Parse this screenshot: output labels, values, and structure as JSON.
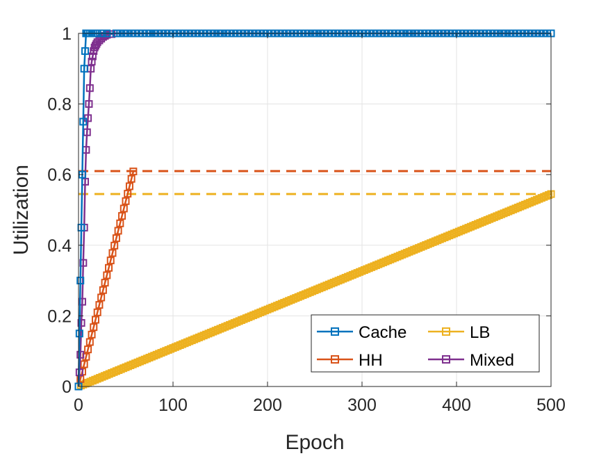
{
  "chart_data": {
    "type": "line",
    "xlabel": "Epoch",
    "ylabel": "Utilization",
    "xlim": [
      0,
      500
    ],
    "ylim": [
      0,
      1
    ],
    "xticks": [
      "0",
      "100",
      "200",
      "300",
      "400",
      "500"
    ],
    "yticks": [
      "0",
      "0.2",
      "0.4",
      "0.6",
      "0.8",
      "1"
    ],
    "grid": true,
    "legend_position": "bottom-right",
    "series": [
      {
        "name": "Cache",
        "color": "#0072BD",
        "marker": "square",
        "x": [
          0,
          1,
          2,
          3,
          4,
          5,
          6,
          7,
          8,
          9,
          10,
          12,
          14,
          16,
          18,
          20,
          25,
          30,
          40,
          50,
          75,
          100,
          150,
          200,
          250,
          300,
          350,
          400,
          450,
          500
        ],
        "y": [
          0,
          0.15,
          0.3,
          0.45,
          0.6,
          0.75,
          0.9,
          0.95,
          1,
          1,
          1,
          1,
          1,
          1,
          1,
          1,
          1,
          1,
          1,
          1,
          1,
          1,
          1,
          1,
          1,
          1,
          1,
          1,
          1,
          1
        ]
      },
      {
        "name": "HH",
        "color": "#D95319",
        "marker": "square",
        "x": [
          0,
          2,
          4,
          6,
          8,
          10,
          12,
          14,
          16,
          18,
          20,
          22,
          24,
          26,
          28,
          30,
          32,
          34,
          36,
          38,
          40,
          42,
          44,
          46,
          48,
          50,
          52,
          54,
          56,
          58
        ],
        "y": [
          0.0,
          0.021,
          0.042,
          0.063,
          0.084,
          0.105,
          0.126,
          0.147,
          0.168,
          0.189,
          0.21,
          0.231,
          0.252,
          0.273,
          0.294,
          0.315,
          0.336,
          0.357,
          0.378,
          0.399,
          0.42,
          0.441,
          0.462,
          0.483,
          0.504,
          0.525,
          0.546,
          0.567,
          0.588,
          0.609
        ]
      },
      {
        "name": "LB",
        "color": "#EDB120",
        "marker": "square",
        "x": [
          0,
          20,
          40,
          60,
          80,
          100,
          120,
          140,
          160,
          180,
          200,
          220,
          240,
          260,
          280,
          300,
          320,
          340,
          360,
          380,
          400,
          420,
          440,
          460,
          480,
          500
        ],
        "y": [
          0.0,
          0.0218,
          0.0436,
          0.0654,
          0.0872,
          0.109,
          0.1308,
          0.1526,
          0.1744,
          0.1962,
          0.218,
          0.2398,
          0.2616,
          0.2834,
          0.3052,
          0.327,
          0.3488,
          0.3706,
          0.3924,
          0.4142,
          0.436,
          0.4578,
          0.4796,
          0.5014,
          0.5232,
          0.545
        ]
      },
      {
        "name": "Mixed",
        "color": "#7E2F8E",
        "marker": "square",
        "x": [
          0,
          1,
          2,
          3,
          4,
          5,
          6,
          7,
          8,
          9,
          10,
          11,
          12,
          13,
          14,
          15,
          16,
          17,
          18,
          19,
          20,
          22,
          24,
          26,
          28,
          30,
          35,
          40,
          50,
          75,
          100,
          150,
          200,
          250,
          300,
          350,
          400,
          450,
          500
        ],
        "y": [
          0.0,
          0.04,
          0.09,
          0.18,
          0.24,
          0.35,
          0.45,
          0.58,
          0.67,
          0.72,
          0.76,
          0.8,
          0.845,
          0.9,
          0.92,
          0.935,
          0.95,
          0.96,
          0.965,
          0.97,
          0.975,
          0.98,
          0.985,
          0.99,
          0.993,
          0.996,
          0.998,
          1,
          1,
          1,
          1,
          1,
          1,
          1,
          1,
          1,
          1,
          1,
          1
        ]
      }
    ],
    "reference_lines": [
      {
        "color": "#D95319",
        "style": "dashed",
        "y": 0.61
      },
      {
        "color": "#EDB120",
        "style": "dashed",
        "y": 0.545
      }
    ],
    "legend": {
      "entries": [
        "Cache",
        "LB",
        "HH",
        "Mixed"
      ],
      "layout": "2 columns"
    }
  }
}
